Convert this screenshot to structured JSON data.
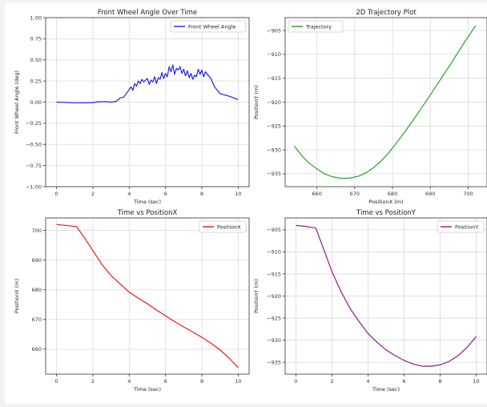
{
  "chart_data": [
    {
      "type": "line",
      "title": "Front Wheel Angle Over Time",
      "xlabel": "Time (sec)",
      "ylabel": "Front Wheel Angle (deg)",
      "xlim": [
        -0.6,
        10.6
      ],
      "ylim": [
        -1.0,
        1.0
      ],
      "xticks": [
        0,
        2,
        4,
        6,
        8,
        10
      ],
      "xtick_labels": [
        "0",
        "2",
        "4",
        "6",
        "8",
        "10"
      ],
      "yticks": [
        -1.0,
        -0.75,
        -0.5,
        -0.25,
        0.0,
        0.25,
        0.5,
        0.75,
        1.0
      ],
      "ytick_labels": [
        "−1.00",
        "−0.75",
        "−0.50",
        "−0.25",
        "0.00",
        "0.25",
        "0.50",
        "0.75",
        "1.00"
      ],
      "grid": true,
      "legend": "top-right",
      "series": [
        {
          "name": "Front Wheel Angle",
          "color": "#1f1fe6",
          "points": [
            [
              0,
              0.0
            ],
            [
              0.5,
              -0.003
            ],
            [
              1.0,
              -0.008
            ],
            [
              1.5,
              -0.008
            ],
            [
              2.0,
              -0.005
            ],
            [
              2.3,
              0.005
            ],
            [
              2.7,
              0.006
            ],
            [
              3.0,
              0.0
            ],
            [
              3.3,
              0.01
            ],
            [
              3.5,
              0.05
            ],
            [
              3.7,
              0.06
            ],
            [
              3.9,
              0.12
            ],
            [
              4.1,
              0.18
            ],
            [
              4.2,
              0.14
            ],
            [
              4.3,
              0.22
            ],
            [
              4.4,
              0.19
            ],
            [
              4.5,
              0.25
            ],
            [
              4.6,
              0.22
            ],
            [
              4.7,
              0.27
            ],
            [
              4.8,
              0.24
            ],
            [
              4.9,
              0.26
            ],
            [
              5.0,
              0.28
            ],
            [
              5.1,
              0.21
            ],
            [
              5.2,
              0.26
            ],
            [
              5.3,
              0.24
            ],
            [
              5.4,
              0.3
            ],
            [
              5.5,
              0.22
            ],
            [
              5.6,
              0.29
            ],
            [
              5.7,
              0.27
            ],
            [
              5.8,
              0.35
            ],
            [
              5.9,
              0.28
            ],
            [
              6.0,
              0.34
            ],
            [
              6.1,
              0.3
            ],
            [
              6.2,
              0.42
            ],
            [
              6.3,
              0.36
            ],
            [
              6.4,
              0.44
            ],
            [
              6.5,
              0.33
            ],
            [
              6.6,
              0.4
            ],
            [
              6.7,
              0.38
            ],
            [
              6.8,
              0.42
            ],
            [
              6.9,
              0.34
            ],
            [
              7.0,
              0.39
            ],
            [
              7.1,
              0.31
            ],
            [
              7.2,
              0.37
            ],
            [
              7.3,
              0.29
            ],
            [
              7.4,
              0.34
            ],
            [
              7.5,
              0.27
            ],
            [
              7.6,
              0.32
            ],
            [
              7.7,
              0.3
            ],
            [
              7.8,
              0.39
            ],
            [
              7.9,
              0.33
            ],
            [
              8.0,
              0.38
            ],
            [
              8.1,
              0.3
            ],
            [
              8.2,
              0.36
            ],
            [
              8.3,
              0.33
            ],
            [
              8.5,
              0.28
            ],
            [
              8.7,
              0.18
            ],
            [
              9.0,
              0.1
            ],
            [
              9.5,
              0.07
            ],
            [
              10.0,
              0.03
            ]
          ]
        }
      ]
    },
    {
      "type": "line",
      "title": "2D Trajectory Plot",
      "xlabel": "PositionX (m)",
      "ylabel": "PositionY (m)",
      "xlim": [
        651.6,
        705.0
      ],
      "ylim": [
        -937.7,
        -902.3
      ],
      "xticks": [
        660,
        670,
        680,
        690,
        700
      ],
      "xtick_labels": [
        "660",
        "670",
        "680",
        "690",
        "700"
      ],
      "yticks": [
        -935,
        -930,
        -925,
        -920,
        -915,
        -910,
        -905
      ],
      "ytick_labels": [
        "−935",
        "−930",
        "−925",
        "−920",
        "−915",
        "−910",
        "−905"
      ],
      "grid": true,
      "legend": "top-left",
      "series": [
        {
          "name": "Trajectory",
          "color": "#2ca02c",
          "points": [
            [
              654.0,
              -929.2
            ],
            [
              656.0,
              -931.2
            ],
            [
              658.0,
              -932.8
            ],
            [
              660.0,
              -934.0
            ],
            [
              662.0,
              -935.0
            ],
            [
              664.0,
              -935.6
            ],
            [
              666.0,
              -935.9
            ],
            [
              667.5,
              -935.95
            ],
            [
              669.0,
              -935.85
            ],
            [
              671.0,
              -935.5
            ],
            [
              673.0,
              -934.8
            ],
            [
              675.0,
              -933.7
            ],
            [
              677.0,
              -932.3
            ],
            [
              679.0,
              -930.6
            ],
            [
              681.0,
              -928.6
            ],
            [
              683.0,
              -926.5
            ],
            [
              686.0,
              -923.2
            ],
            [
              690.0,
              -918.5
            ],
            [
              695.0,
              -912.5
            ],
            [
              699.0,
              -907.5
            ],
            [
              702.0,
              -904.0
            ]
          ]
        }
      ]
    },
    {
      "type": "line",
      "title": "Time vs PositionX",
      "xlabel": "Time (sec)",
      "ylabel": "PositionX (m)",
      "xlim": [
        -0.6,
        10.6
      ],
      "ylim": [
        651.6,
        704.2
      ],
      "xticks": [
        0,
        2,
        4,
        6,
        8,
        10
      ],
      "xtick_labels": [
        "0",
        "2",
        "4",
        "6",
        "8",
        "10"
      ],
      "yticks": [
        660,
        670,
        680,
        690,
        700
      ],
      "ytick_labels": [
        "660",
        "670",
        "680",
        "690",
        "700"
      ],
      "grid": true,
      "legend": "top-right",
      "series": [
        {
          "name": "PositionX",
          "color": "#e31a1c",
          "points": [
            [
              0,
              702.0
            ],
            [
              0.5,
              701.7
            ],
            [
              1.1,
              701.3
            ],
            [
              1.5,
              697.8
            ],
            [
              2.0,
              693.2
            ],
            [
              2.5,
              688.5
            ],
            [
              3.0,
              684.8
            ],
            [
              3.5,
              682.0
            ],
            [
              4.0,
              679.2
            ],
            [
              4.5,
              677.2
            ],
            [
              5.0,
              675.3
            ],
            [
              5.5,
              673.2
            ],
            [
              6.0,
              671.2
            ],
            [
              6.5,
              669.3
            ],
            [
              7.0,
              667.5
            ],
            [
              7.5,
              665.8
            ],
            [
              8.0,
              664.0
            ],
            [
              8.5,
              662.0
            ],
            [
              9.0,
              659.8
            ],
            [
              9.5,
              657.0
            ],
            [
              10.0,
              653.8
            ]
          ]
        }
      ]
    },
    {
      "type": "line",
      "title": "Time vs PositionY",
      "xlabel": "Time (sec)",
      "ylabel": "PositionY (m)",
      "xlim": [
        -0.6,
        10.6
      ],
      "ylim": [
        -937.7,
        -902.3
      ],
      "xticks": [
        0,
        2,
        4,
        6,
        8,
        10
      ],
      "xtick_labels": [
        "0",
        "2",
        "4",
        "6",
        "8",
        "10"
      ],
      "yticks": [
        -935,
        -930,
        -925,
        -920,
        -915,
        -910,
        -905
      ],
      "ytick_labels": [
        "−935",
        "−930",
        "−925",
        "−920",
        "−915",
        "−910",
        "−905"
      ],
      "grid": true,
      "legend": "top-right",
      "series": [
        {
          "name": "PositionY",
          "color": "#8b1a8b",
          "points": [
            [
              0,
              -904.0
            ],
            [
              0.5,
              -904.2
            ],
            [
              1.1,
              -904.6
            ],
            [
              1.5,
              -909.0
            ],
            [
              2.0,
              -914.5
            ],
            [
              2.5,
              -919.0
            ],
            [
              3.0,
              -922.8
            ],
            [
              3.5,
              -925.8
            ],
            [
              4.0,
              -928.5
            ],
            [
              4.5,
              -930.5
            ],
            [
              5.0,
              -932.2
            ],
            [
              5.5,
              -933.5
            ],
            [
              6.0,
              -934.6
            ],
            [
              6.5,
              -935.4
            ],
            [
              7.0,
              -935.9
            ],
            [
              7.5,
              -935.9
            ],
            [
              8.0,
              -935.6
            ],
            [
              8.5,
              -934.8
            ],
            [
              9.0,
              -933.5
            ],
            [
              9.5,
              -931.6
            ],
            [
              10.0,
              -929.2
            ]
          ]
        }
      ]
    }
  ]
}
